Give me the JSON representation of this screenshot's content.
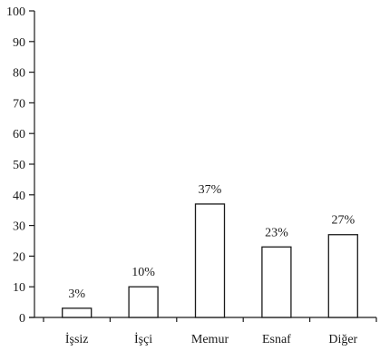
{
  "chart_data": {
    "type": "bar",
    "categories": [
      "İşsiz",
      "İşçi",
      "Memur",
      "Esnaf",
      "Diğer"
    ],
    "values": [
      3,
      10,
      37,
      23,
      27
    ],
    "data_labels": [
      "3%",
      "10%",
      "37%",
      "23%",
      "27%"
    ],
    "title": "",
    "xlabel": "",
    "ylabel": "",
    "ylim": [
      0,
      100
    ],
    "yticks": [
      0,
      10,
      20,
      30,
      40,
      50,
      60,
      70,
      80,
      90,
      100
    ],
    "grid": false,
    "legend": "none",
    "colors": {
      "bar_fill": "#ffffff",
      "bar_stroke": "#1a1a1a",
      "axis": "#1a1a1a",
      "text": "#1a1a1a"
    }
  }
}
